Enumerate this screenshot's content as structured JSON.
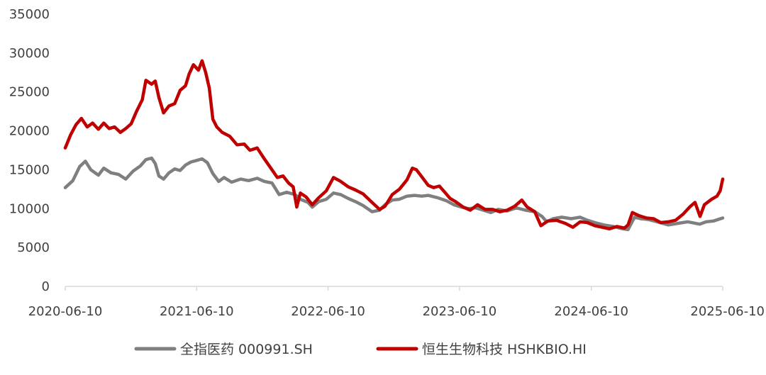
{
  "chart_data": {
    "type": "line",
    "title": "",
    "xlabel": "",
    "ylabel": "",
    "ylim": [
      0,
      35000
    ],
    "yticks": [
      0,
      5000,
      10000,
      15000,
      20000,
      25000,
      30000,
      35000
    ],
    "xlim": [
      "2020-06-10",
      "2025-06-10"
    ],
    "xticks": [
      "2020-06-10",
      "2021-06-10",
      "2022-06-10",
      "2023-06-10",
      "2024-06-10",
      "2025-06-10"
    ],
    "grid": false,
    "legend_position": "bottom",
    "series": [
      {
        "name": "全指医药 000991.SH",
        "color": "#7f7f7f",
        "points": [
          [
            "2020-06-10",
            12700
          ],
          [
            "2020-07-01",
            13600
          ],
          [
            "2020-07-20",
            15400
          ],
          [
            "2020-08-05",
            16100
          ],
          [
            "2020-08-20",
            15000
          ],
          [
            "2020-09-10",
            14300
          ],
          [
            "2020-09-25",
            15200
          ],
          [
            "2020-10-15",
            14600
          ],
          [
            "2020-11-05",
            14400
          ],
          [
            "2020-11-25",
            13800
          ],
          [
            "2020-12-15",
            14800
          ],
          [
            "2021-01-05",
            15500
          ],
          [
            "2021-01-20",
            16300
          ],
          [
            "2021-02-05",
            16500
          ],
          [
            "2021-02-15",
            15800
          ],
          [
            "2021-02-25",
            14200
          ],
          [
            "2021-03-10",
            13800
          ],
          [
            "2021-03-25",
            14600
          ],
          [
            "2021-04-10",
            15100
          ],
          [
            "2021-04-25",
            14900
          ],
          [
            "2021-05-10",
            15600
          ],
          [
            "2021-05-25",
            16000
          ],
          [
            "2021-06-10",
            16200
          ],
          [
            "2021-06-25",
            16400
          ],
          [
            "2021-07-10",
            15900
          ],
          [
            "2021-07-25",
            14500
          ],
          [
            "2021-08-10",
            13500
          ],
          [
            "2021-08-25",
            14000
          ],
          [
            "2021-09-15",
            13400
          ],
          [
            "2021-10-10",
            13800
          ],
          [
            "2021-11-01",
            13600
          ],
          [
            "2021-11-25",
            13900
          ],
          [
            "2021-12-15",
            13500
          ],
          [
            "2022-01-05",
            13300
          ],
          [
            "2022-01-25",
            11800
          ],
          [
            "2022-02-15",
            12100
          ],
          [
            "2022-03-10",
            11800
          ],
          [
            "2022-03-25",
            11200
          ],
          [
            "2022-04-15",
            10800
          ],
          [
            "2022-04-27",
            10200
          ],
          [
            "2022-05-15",
            10900
          ],
          [
            "2022-06-05",
            11200
          ],
          [
            "2022-06-25",
            12000
          ],
          [
            "2022-07-15",
            11800
          ],
          [
            "2022-08-05",
            11300
          ],
          [
            "2022-08-25",
            10900
          ],
          [
            "2022-09-15",
            10400
          ],
          [
            "2022-10-10",
            9600
          ],
          [
            "2022-10-31",
            9800
          ],
          [
            "2022-11-15",
            10500
          ],
          [
            "2022-12-05",
            11100
          ],
          [
            "2022-12-25",
            11200
          ],
          [
            "2023-01-15",
            11600
          ],
          [
            "2023-02-05",
            11700
          ],
          [
            "2023-02-25",
            11600
          ],
          [
            "2023-03-15",
            11700
          ],
          [
            "2023-04-10",
            11400
          ],
          [
            "2023-05-05",
            11000
          ],
          [
            "2023-05-25",
            10500
          ],
          [
            "2023-06-15",
            10200
          ],
          [
            "2023-07-05",
            10000
          ],
          [
            "2023-07-25",
            10100
          ],
          [
            "2023-08-15",
            9800
          ],
          [
            "2023-09-05",
            9500
          ],
          [
            "2023-09-25",
            9900
          ],
          [
            "2023-10-20",
            9700
          ],
          [
            "2023-11-15",
            10100
          ],
          [
            "2023-12-10",
            9800
          ],
          [
            "2024-01-05",
            9600
          ],
          [
            "2024-01-25",
            9000
          ],
          [
            "2024-02-07",
            8300
          ],
          [
            "2024-02-25",
            8700
          ],
          [
            "2024-03-20",
            8900
          ],
          [
            "2024-04-15",
            8700
          ],
          [
            "2024-05-10",
            8900
          ],
          [
            "2024-05-30",
            8500
          ],
          [
            "2024-06-20",
            8200
          ],
          [
            "2024-07-15",
            7900
          ],
          [
            "2024-08-10",
            7700
          ],
          [
            "2024-09-05",
            7400
          ],
          [
            "2024-09-20",
            7300
          ],
          [
            "2024-10-08",
            8900
          ],
          [
            "2024-10-25",
            8700
          ],
          [
            "2024-11-15",
            8600
          ],
          [
            "2024-12-10",
            8300
          ],
          [
            "2025-01-10",
            7900
          ],
          [
            "2025-02-05",
            8100
          ],
          [
            "2025-03-05",
            8300
          ],
          [
            "2025-04-07",
            8000
          ],
          [
            "2025-04-25",
            8300
          ],
          [
            "2025-05-15",
            8400
          ],
          [
            "2025-06-10",
            8800
          ]
        ]
      },
      {
        "name": "恒生生物科技 HSHKBIO.HI",
        "color": "#c00000",
        "points": [
          [
            "2020-06-10",
            17800
          ],
          [
            "2020-06-25",
            19500
          ],
          [
            "2020-07-10",
            20800
          ],
          [
            "2020-07-25",
            21600
          ],
          [
            "2020-08-10",
            20500
          ],
          [
            "2020-08-25",
            21000
          ],
          [
            "2020-09-10",
            20200
          ],
          [
            "2020-09-25",
            21000
          ],
          [
            "2020-10-10",
            20300
          ],
          [
            "2020-10-25",
            20500
          ],
          [
            "2020-11-10",
            19800
          ],
          [
            "2020-11-25",
            20300
          ],
          [
            "2020-12-10",
            20900
          ],
          [
            "2020-12-25",
            22500
          ],
          [
            "2021-01-10",
            24000
          ],
          [
            "2021-01-20",
            26500
          ],
          [
            "2021-02-05",
            26000
          ],
          [
            "2021-02-15",
            26400
          ],
          [
            "2021-02-25",
            24300
          ],
          [
            "2021-03-10",
            22300
          ],
          [
            "2021-03-25",
            23200
          ],
          [
            "2021-04-10",
            23500
          ],
          [
            "2021-04-25",
            25200
          ],
          [
            "2021-05-10",
            25800
          ],
          [
            "2021-05-20",
            27300
          ],
          [
            "2021-06-01",
            28500
          ],
          [
            "2021-06-15",
            27800
          ],
          [
            "2021-06-25",
            29000
          ],
          [
            "2021-07-05",
            27500
          ],
          [
            "2021-07-15",
            25500
          ],
          [
            "2021-07-25",
            21500
          ],
          [
            "2021-08-05",
            20500
          ],
          [
            "2021-08-20",
            19800
          ],
          [
            "2021-09-10",
            19300
          ],
          [
            "2021-09-30",
            18200
          ],
          [
            "2021-10-20",
            18300
          ],
          [
            "2021-11-05",
            17500
          ],
          [
            "2021-11-25",
            17800
          ],
          [
            "2021-12-15",
            16400
          ],
          [
            "2022-01-05",
            15000
          ],
          [
            "2022-01-20",
            14000
          ],
          [
            "2022-02-05",
            14200
          ],
          [
            "2022-02-20",
            13300
          ],
          [
            "2022-03-05",
            12800
          ],
          [
            "2022-03-15",
            10200
          ],
          [
            "2022-03-25",
            12000
          ],
          [
            "2022-04-10",
            11500
          ],
          [
            "2022-04-27",
            10500
          ],
          [
            "2022-05-15",
            11400
          ],
          [
            "2022-06-05",
            12300
          ],
          [
            "2022-06-25",
            14000
          ],
          [
            "2022-07-15",
            13500
          ],
          [
            "2022-08-05",
            12800
          ],
          [
            "2022-08-25",
            12400
          ],
          [
            "2022-09-15",
            11900
          ],
          [
            "2022-10-10",
            10800
          ],
          [
            "2022-10-31",
            9900
          ],
          [
            "2022-11-15",
            10300
          ],
          [
            "2022-12-05",
            11800
          ],
          [
            "2022-12-25",
            12500
          ],
          [
            "2023-01-15",
            13700
          ],
          [
            "2023-01-30",
            15200
          ],
          [
            "2023-02-10",
            15000
          ],
          [
            "2023-02-25",
            14100
          ],
          [
            "2023-03-15",
            13000
          ],
          [
            "2023-03-30",
            12700
          ],
          [
            "2023-04-15",
            12900
          ],
          [
            "2023-04-30",
            12100
          ],
          [
            "2023-05-15",
            11300
          ],
          [
            "2023-05-30",
            10900
          ],
          [
            "2023-06-20",
            10200
          ],
          [
            "2023-07-10",
            9800
          ],
          [
            "2023-07-30",
            10500
          ],
          [
            "2023-08-20",
            9900
          ],
          [
            "2023-09-10",
            9900
          ],
          [
            "2023-09-30",
            9600
          ],
          [
            "2023-10-20",
            9800
          ],
          [
            "2023-11-10",
            10300
          ],
          [
            "2023-11-30",
            11100
          ],
          [
            "2023-12-15",
            10200
          ],
          [
            "2024-01-05",
            9600
          ],
          [
            "2024-01-22",
            7800
          ],
          [
            "2024-02-10",
            8400
          ],
          [
            "2024-03-05",
            8500
          ],
          [
            "2024-03-30",
            8100
          ],
          [
            "2024-04-20",
            7600
          ],
          [
            "2024-05-10",
            8300
          ],
          [
            "2024-05-30",
            8200
          ],
          [
            "2024-06-20",
            7800
          ],
          [
            "2024-07-10",
            7600
          ],
          [
            "2024-07-30",
            7400
          ],
          [
            "2024-08-20",
            7700
          ],
          [
            "2024-09-10",
            7500
          ],
          [
            "2024-09-20",
            7900
          ],
          [
            "2024-10-02",
            9500
          ],
          [
            "2024-10-20",
            9100
          ],
          [
            "2024-11-10",
            8800
          ],
          [
            "2024-11-30",
            8700
          ],
          [
            "2024-12-20",
            8200
          ],
          [
            "2025-01-10",
            8300
          ],
          [
            "2025-01-30",
            8500
          ],
          [
            "2025-02-20",
            9300
          ],
          [
            "2025-03-10",
            10200
          ],
          [
            "2025-03-25",
            10800
          ],
          [
            "2025-04-08",
            9000
          ],
          [
            "2025-04-20",
            10500
          ],
          [
            "2025-05-10",
            11200
          ],
          [
            "2025-05-25",
            11600
          ],
          [
            "2025-06-03",
            12300
          ],
          [
            "2025-06-10",
            13800
          ]
        ]
      }
    ]
  }
}
